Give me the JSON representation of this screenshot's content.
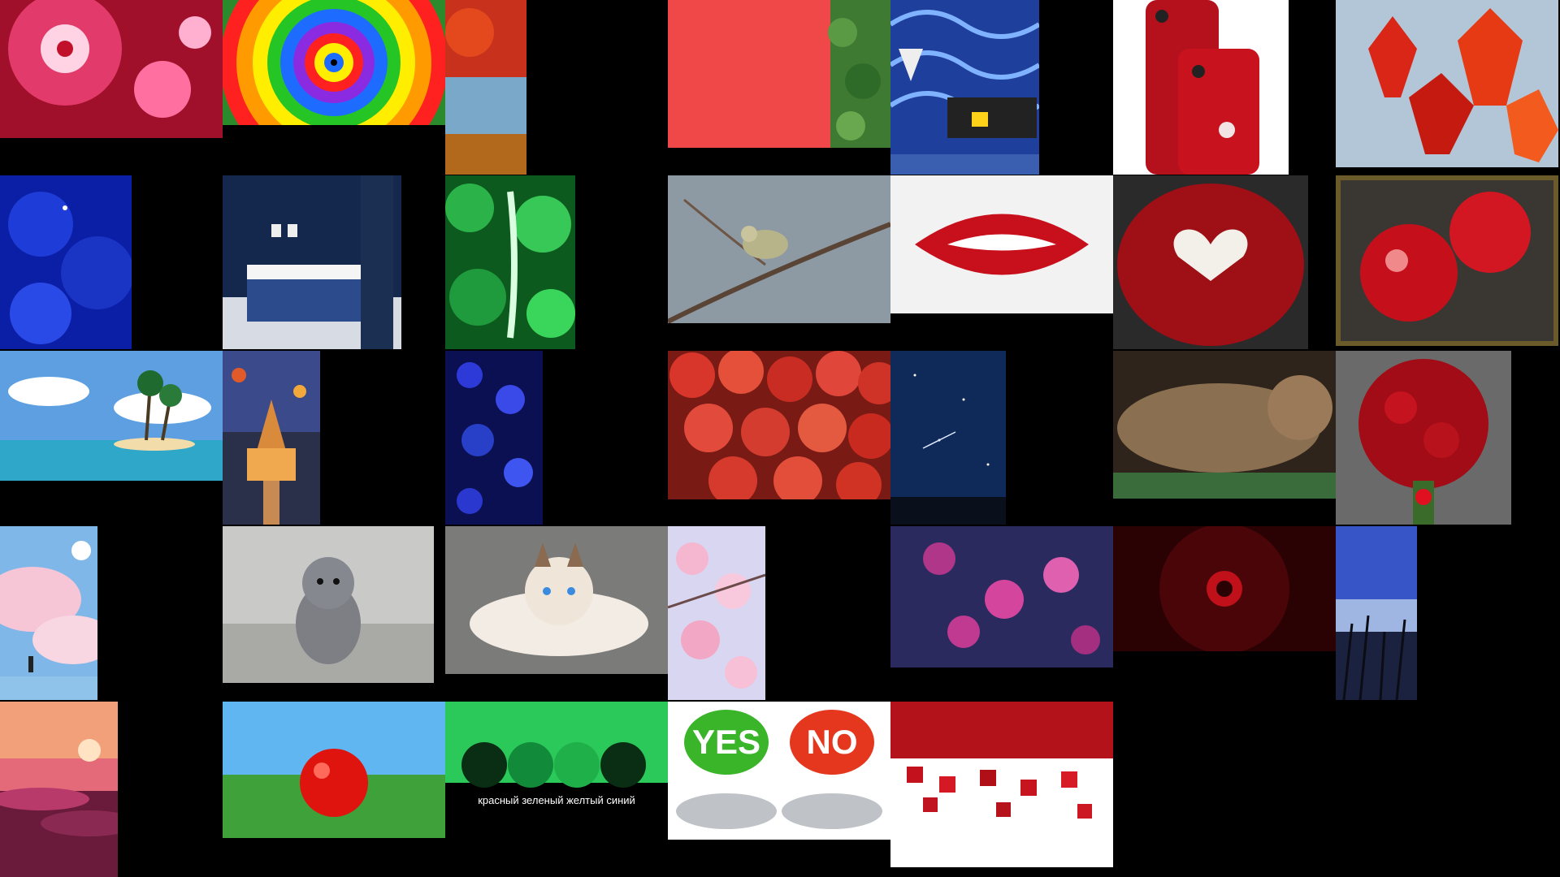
{
  "gallery": {
    "tiles": [
      {
        "id": "flower-fractal",
        "subject": "flower fractal"
      },
      {
        "id": "rainbow-spiral",
        "subject": "rainbow spiral"
      },
      {
        "id": "autumn-lake",
        "subject": "autumn lake"
      },
      {
        "id": "red-wall-leaves",
        "subject": "red wall with leaves"
      },
      {
        "id": "blue-interior",
        "subject": "blue room interior"
      },
      {
        "id": "red-iphone",
        "subject": "red iphone"
      },
      {
        "id": "red-maple-leaves",
        "subject": "red maple leaves"
      },
      {
        "id": "blue-roses",
        "subject": "blue roses"
      },
      {
        "id": "blue-bedroom",
        "subject": "blue bedroom"
      },
      {
        "id": "green-leaves-feather",
        "subject": "green leaves"
      },
      {
        "id": "bird-branch",
        "subject": "bird on branch"
      },
      {
        "id": "red-lips",
        "subject": "red lips"
      },
      {
        "id": "rose-heart",
        "subject": "roses heart"
      },
      {
        "id": "red-apples-pair",
        "subject": "red apples"
      },
      {
        "id": "tropical-island",
        "subject": "tropical island"
      },
      {
        "id": "castle-balloons",
        "subject": "castle with balloons"
      },
      {
        "id": "blue-flowers",
        "subject": "blue flowers"
      },
      {
        "id": "apples-pile",
        "subject": "apples pile"
      },
      {
        "id": "starry-sky",
        "subject": "starry sky"
      },
      {
        "id": "sleeping-cat",
        "subject": "sleeping cat"
      },
      {
        "id": "rose-bouquet",
        "subject": "rose bouquet"
      },
      {
        "id": "pink-clouds-girl",
        "subject": "pink clouds"
      },
      {
        "id": "grey-kitten",
        "subject": "grey kitten"
      },
      {
        "id": "white-cat",
        "subject": "white cat"
      },
      {
        "id": "cherry-blossom",
        "subject": "cherry blossom"
      },
      {
        "id": "purple-flowers",
        "subject": "purple flowers"
      },
      {
        "id": "dark-red-abstract",
        "subject": "dark red abstract"
      },
      {
        "id": "blue-grass-sky",
        "subject": "grass and blue sky"
      },
      {
        "id": "sunset-clouds",
        "subject": "sunset clouds"
      },
      {
        "id": "red-ball",
        "subject": "red ball"
      },
      {
        "id": "green-balls",
        "subject": "green balls"
      },
      {
        "id": "yes-no-buttons",
        "subject": "yes no buttons"
      },
      {
        "id": "red-cubes",
        "subject": "red cubes"
      }
    ],
    "green_balls_caption": "красный  зеленый  желтый   синий",
    "yes_label": "YES",
    "no_label": "NO"
  },
  "colors": {
    "background": "#000000",
    "red": "#d21f1f",
    "blue": "#1a2fd6",
    "green": "#2bb34a"
  }
}
